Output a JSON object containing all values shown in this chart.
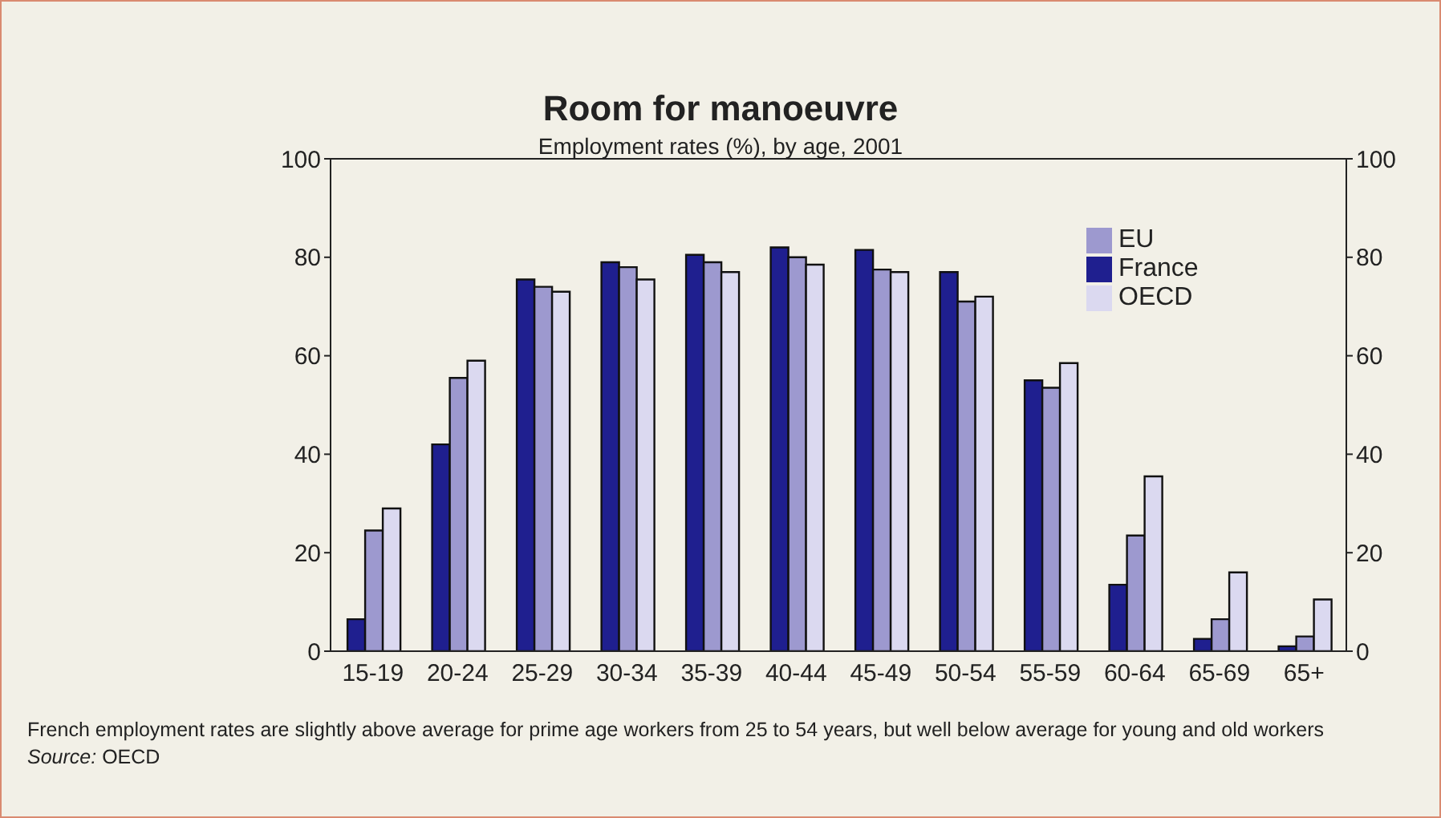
{
  "chart_data": {
    "type": "bar",
    "title": "Room for manoeuvre",
    "subtitle": "Employment rates (%), by age, 2001",
    "categories": [
      "15-19",
      "20-24",
      "25-29",
      "30-34",
      "35-39",
      "40-44",
      "45-49",
      "50-54",
      "55-59",
      "60-64",
      "65-69",
      "65+"
    ],
    "series": [
      {
        "name": "France",
        "color": "#1f1f8f",
        "values": [
          6.5,
          42,
          75.5,
          79,
          80.5,
          82,
          81.5,
          77,
          55,
          13.5,
          2.5,
          1
        ]
      },
      {
        "name": "EU",
        "color": "#9d99cf",
        "values": [
          24.5,
          55.5,
          74,
          78,
          79,
          80,
          77.5,
          71,
          53.5,
          23.5,
          6.5,
          3
        ]
      },
      {
        "name": "OECD",
        "color": "#dbd9f0",
        "values": [
          29,
          59,
          73,
          75.5,
          77,
          78.5,
          77,
          72,
          58.5,
          35.5,
          16,
          10.5
        ]
      }
    ],
    "ylim": [
      0,
      100
    ],
    "yticks": [
      0,
      20,
      40,
      60,
      80,
      100
    ],
    "y2lim": [
      0,
      100
    ],
    "y2ticks": [
      0,
      20,
      40,
      60,
      80,
      100
    ],
    "grid": false,
    "legend": "top right",
    "annotations": [
      "French employment rates are slightly above average for prime age workers from 25 to 54 years, but well below average for young and old workers",
      "Source: OECD"
    ]
  }
}
